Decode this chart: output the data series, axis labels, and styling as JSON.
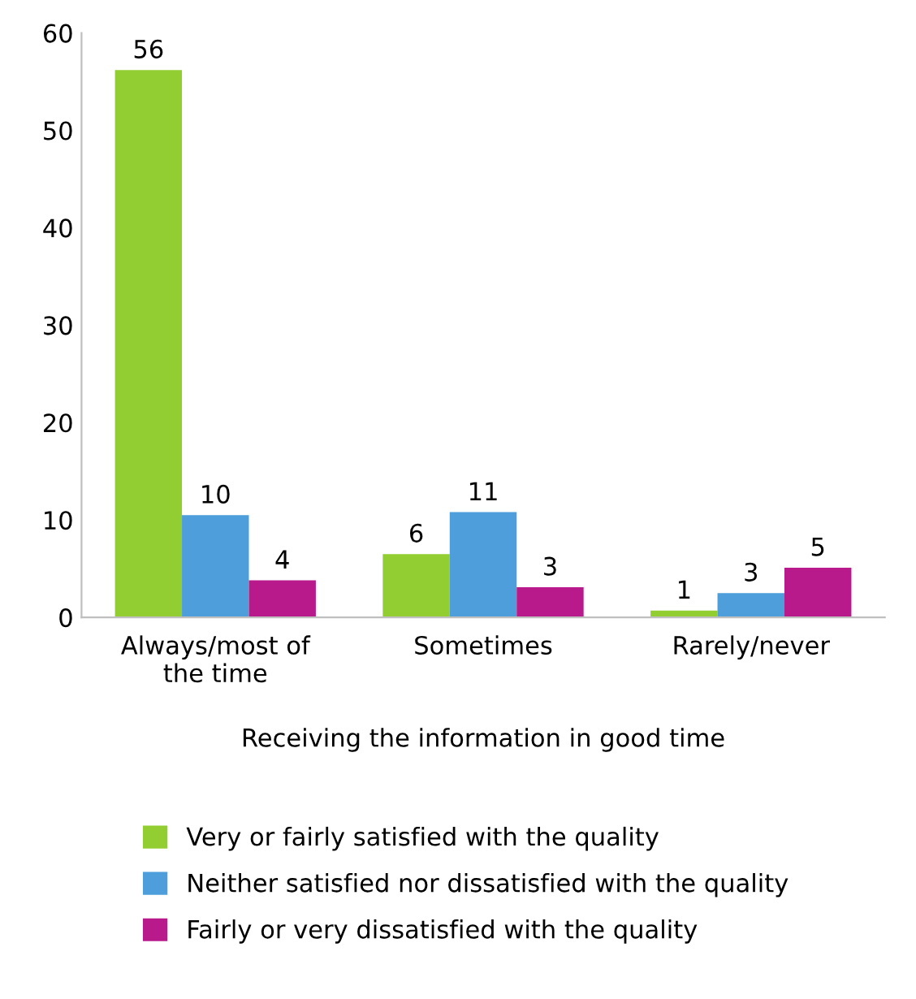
{
  "chart_data": {
    "type": "bar",
    "xlabel": "Receiving the information in good time",
    "categories": [
      "Always/most of\nthe time",
      "Sometimes",
      "Rarely/never"
    ],
    "series": [
      {
        "name": "Very or fairly satisfied with the quality",
        "color": "#92cd32",
        "values": [
          56.2,
          6.5,
          0.7
        ],
        "value_labels": [
          "56",
          "6",
          "1"
        ]
      },
      {
        "name": "Neither satisfied nor dissatisfied with the quality",
        "color": "#4d9edb",
        "values": [
          10.5,
          10.8,
          2.5
        ],
        "value_labels": [
          "10",
          "11",
          "3"
        ]
      },
      {
        "name": "Fairly or very dissatisfied with the quality",
        "color": "#b81a8c",
        "values": [
          3.8,
          3.1,
          5.1
        ],
        "value_labels": [
          "4",
          "3",
          "5"
        ]
      }
    ],
    "ylim": [
      0,
      60
    ],
    "yticks": [
      0,
      10,
      20,
      30,
      40,
      50,
      60
    ],
    "grid": false,
    "legend": "bottom"
  }
}
